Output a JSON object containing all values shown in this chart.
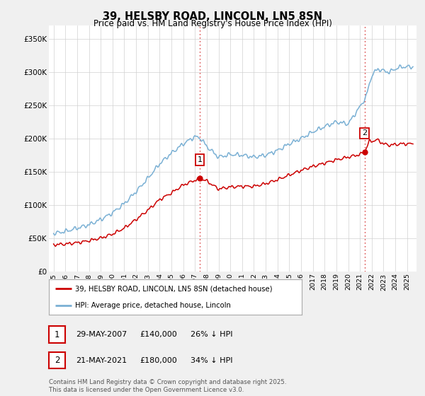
{
  "title": "39, HELSBY ROAD, LINCOLN, LN5 8SN",
  "subtitle": "Price paid vs. HM Land Registry's House Price Index (HPI)",
  "ylabel_ticks": [
    "£0",
    "£50K",
    "£100K",
    "£150K",
    "£200K",
    "£250K",
    "£300K",
    "£350K"
  ],
  "ytick_values": [
    0,
    50000,
    100000,
    150000,
    200000,
    250000,
    300000,
    350000
  ],
  "ylim": [
    0,
    370000
  ],
  "xlim_start": 1994.6,
  "xlim_end": 2025.8,
  "red_color": "#cc0000",
  "blue_color": "#7ab0d4",
  "background_color": "#f0f0f0",
  "plot_bg_color": "#ffffff",
  "marker1_x": 2007.4,
  "marker1_y": 140000,
  "marker2_x": 2021.4,
  "marker2_y": 180000,
  "legend_line1": "39, HELSBY ROAD, LINCOLN, LN5 8SN (detached house)",
  "legend_line2": "HPI: Average price, detached house, Lincoln",
  "table_row1": [
    "1",
    "29-MAY-2007",
    "£140,000",
    "26% ↓ HPI"
  ],
  "table_row2": [
    "2",
    "21-MAY-2021",
    "£180,000",
    "34% ↓ HPI"
  ],
  "footnote": "Contains HM Land Registry data © Crown copyright and database right 2025.\nThis data is licensed under the Open Government Licence v3.0.",
  "xtick_years": [
    1995,
    1996,
    1997,
    1998,
    1999,
    2000,
    2001,
    2002,
    2003,
    2004,
    2005,
    2006,
    2007,
    2008,
    2009,
    2010,
    2011,
    2012,
    2013,
    2014,
    2015,
    2016,
    2017,
    2018,
    2019,
    2020,
    2021,
    2022,
    2023,
    2024,
    2025
  ]
}
